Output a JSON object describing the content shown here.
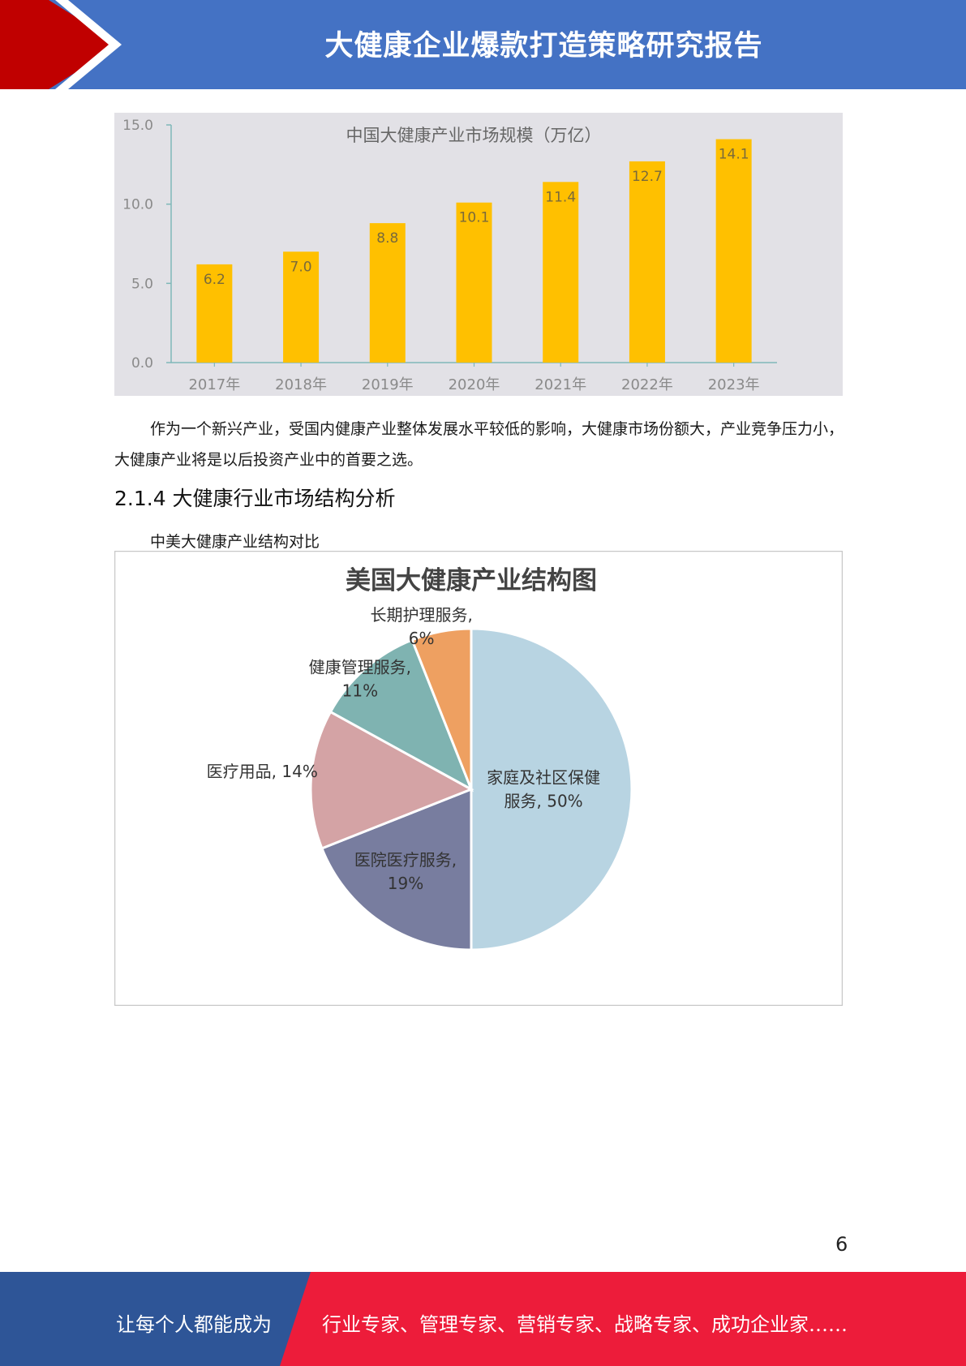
{
  "header": {
    "title": "大健康企业爆款打造策略研究报告"
  },
  "chart_data": [
    {
      "type": "bar",
      "title": "中国大健康产业市场规模（万亿）",
      "categories": [
        "2017年",
        "2018年",
        "2019年",
        "2020年",
        "2021年",
        "2022年",
        "2023年"
      ],
      "values": [
        6.2,
        7.0,
        8.8,
        10.1,
        11.4,
        12.7,
        14.1
      ],
      "value_labels": [
        "6.2",
        "7.0",
        "8.8",
        "10.1",
        "11.4",
        "12.7",
        "14.1"
      ],
      "y_ticks": [
        "0.0",
        "5.0",
        "10.0",
        "15.0"
      ],
      "ylim": [
        0,
        15
      ],
      "bar_color": "#ffc000",
      "background": "#e2e1e6",
      "axis_color": "#7fb8b8",
      "grid": false
    },
    {
      "type": "pie",
      "title": "美国大健康产业结构图",
      "slices": [
        {
          "label_lines": [
            "家庭及社区保健",
            "服务, 50%"
          ],
          "value": 50,
          "color": "#b8d4e2"
        },
        {
          "label_lines": [
            "医院医疗服务,",
            "19%"
          ],
          "value": 19,
          "color": "#787d9f"
        },
        {
          "label_lines": [
            "医疗用品, 14%"
          ],
          "value": 14,
          "color": "#d4a3a5"
        },
        {
          "label_lines": [
            "健康管理服务,",
            "11%"
          ],
          "value": 11,
          "color": "#7fb3b1"
        },
        {
          "label_lines": [
            "长期护理服务,",
            "6%"
          ],
          "value": 6,
          "color": "#eea061"
        }
      ]
    }
  ],
  "body": {
    "paragraph": "作为一个新兴产业，受国内健康产业整体发展水平较低的影响，大健康市场份额大，产业竞争压力小，大健康产业将是以后投资产业中的首要之选。",
    "section_heading": "2.1.4 大健康行业市场结构分析",
    "caption": "中美大健康产业结构对比"
  },
  "page_number": "6",
  "footer": {
    "slogan": "让每个人都能成为",
    "roles": "行业专家、管理专家、营销专家、战略专家、成功企业家……",
    "colors": {
      "left": "#2e5597",
      "right": "#ed1c3a"
    }
  },
  "colors": {
    "header_bg": "#4472c4",
    "header_red": "#c00000"
  }
}
